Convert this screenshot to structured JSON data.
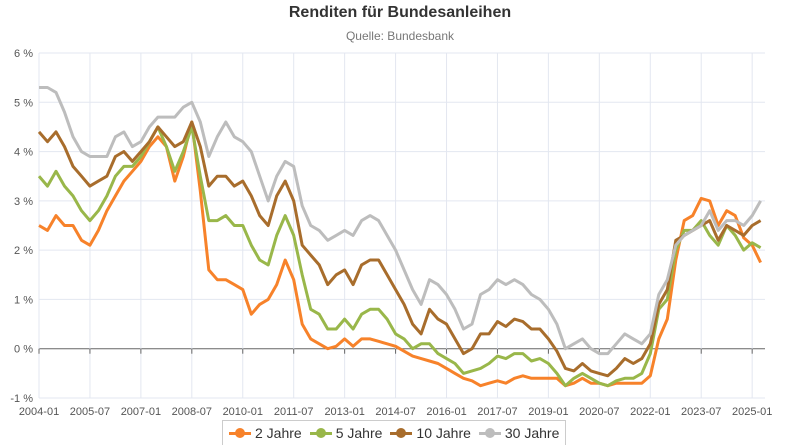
{
  "chart_data": {
    "type": "line",
    "title": "Renditen für Bundesanleihen",
    "subtitle": "Quelle: Bundesbank",
    "xlabel": "",
    "ylabel": "",
    "ylim": [
      -1,
      6
    ],
    "y_ticks": [
      "6 %",
      "5 %",
      "4 %",
      "3 %",
      "2 %",
      "1 %",
      "0 %",
      "-1 %"
    ],
    "y_tick_values": [
      6,
      5,
      4,
      3,
      2,
      1,
      0,
      -1
    ],
    "x_ticks": [
      "2004-01",
      "2005-07",
      "2007-01",
      "2008-07",
      "2010-01",
      "2011-07",
      "2013-01",
      "2014-07",
      "2016-01",
      "2017-07",
      "2019-01",
      "2020-07",
      "2022-01",
      "2023-07",
      "2025-01"
    ],
    "x_range": [
      "2004-01",
      "2025-05"
    ],
    "grid": true,
    "legend_position": "bottom",
    "x_start": "2004-01",
    "x_step": "quarterly",
    "series": [
      {
        "name": "2 Jahre",
        "color": "#f7822a",
        "values": [
          2.5,
          2.4,
          2.7,
          2.5,
          2.5,
          2.2,
          2.1,
          2.4,
          2.8,
          3.1,
          3.4,
          3.6,
          3.8,
          4.1,
          4.3,
          4.1,
          3.4,
          3.9,
          4.6,
          3.2,
          1.6,
          1.4,
          1.4,
          1.3,
          1.2,
          0.7,
          0.9,
          1.0,
          1.3,
          1.8,
          1.4,
          0.5,
          0.2,
          0.1,
          0.0,
          0.05,
          0.2,
          0.05,
          0.2,
          0.2,
          0.15,
          0.1,
          0.05,
          -0.05,
          -0.15,
          -0.2,
          -0.25,
          -0.3,
          -0.4,
          -0.5,
          -0.6,
          -0.65,
          -0.75,
          -0.7,
          -0.65,
          -0.7,
          -0.6,
          -0.55,
          -0.6,
          -0.6,
          -0.6,
          -0.6,
          -0.75,
          -0.7,
          -0.6,
          -0.7,
          -0.7,
          -0.75,
          -0.7,
          -0.7,
          -0.7,
          -0.7,
          -0.55,
          0.2,
          0.6,
          1.8,
          2.6,
          2.7,
          3.05,
          3.0,
          2.5,
          2.8,
          2.7,
          2.25,
          2.1,
          1.75
        ]
      },
      {
        "name": "5 Jahre",
        "color": "#99b74a",
        "values": [
          3.5,
          3.3,
          3.6,
          3.3,
          3.1,
          2.8,
          2.6,
          2.8,
          3.1,
          3.5,
          3.7,
          3.7,
          3.9,
          4.2,
          4.5,
          4.1,
          3.6,
          4.0,
          4.5,
          3.5,
          2.6,
          2.6,
          2.7,
          2.5,
          2.5,
          2.1,
          1.8,
          1.7,
          2.3,
          2.7,
          2.3,
          1.5,
          0.8,
          0.7,
          0.4,
          0.4,
          0.6,
          0.4,
          0.7,
          0.8,
          0.8,
          0.6,
          0.3,
          0.2,
          0.0,
          0.1,
          0.1,
          -0.1,
          -0.2,
          -0.3,
          -0.5,
          -0.45,
          -0.4,
          -0.3,
          -0.15,
          -0.2,
          -0.1,
          -0.1,
          -0.25,
          -0.2,
          -0.3,
          -0.5,
          -0.75,
          -0.6,
          -0.5,
          -0.6,
          -0.7,
          -0.75,
          -0.65,
          -0.6,
          -0.6,
          -0.5,
          -0.1,
          0.8,
          1.0,
          2.0,
          2.4,
          2.4,
          2.6,
          2.3,
          2.1,
          2.5,
          2.3,
          2.0,
          2.15,
          2.05
        ]
      },
      {
        "name": "10 Jahre",
        "color": "#a86d2c",
        "values": [
          4.4,
          4.2,
          4.4,
          4.1,
          3.7,
          3.5,
          3.3,
          3.4,
          3.5,
          3.9,
          4.0,
          3.8,
          4.0,
          4.2,
          4.5,
          4.3,
          4.1,
          4.2,
          4.6,
          4.1,
          3.3,
          3.5,
          3.5,
          3.3,
          3.4,
          3.1,
          2.7,
          2.5,
          3.1,
          3.4,
          3.0,
          2.1,
          1.9,
          1.7,
          1.3,
          1.5,
          1.6,
          1.3,
          1.7,
          1.8,
          1.8,
          1.5,
          1.2,
          0.9,
          0.5,
          0.3,
          0.8,
          0.6,
          0.5,
          0.2,
          -0.1,
          0.0,
          0.3,
          0.3,
          0.55,
          0.45,
          0.6,
          0.55,
          0.4,
          0.4,
          0.2,
          -0.05,
          -0.4,
          -0.45,
          -0.3,
          -0.45,
          -0.5,
          -0.55,
          -0.4,
          -0.2,
          -0.3,
          -0.2,
          0.1,
          0.9,
          1.2,
          2.2,
          2.3,
          2.4,
          2.5,
          2.6,
          2.2,
          2.5,
          2.4,
          2.3,
          2.5,
          2.6
        ]
      },
      {
        "name": "30 Jahre",
        "color": "#bdbdbd",
        "values": [
          5.3,
          5.3,
          5.2,
          4.8,
          4.3,
          4.0,
          3.9,
          3.9,
          3.9,
          4.3,
          4.4,
          4.1,
          4.2,
          4.5,
          4.7,
          4.7,
          4.7,
          4.9,
          5.0,
          4.6,
          3.9,
          4.3,
          4.6,
          4.3,
          4.2,
          4.0,
          3.5,
          3.0,
          3.5,
          3.8,
          3.7,
          2.9,
          2.5,
          2.4,
          2.2,
          2.3,
          2.4,
          2.3,
          2.6,
          2.7,
          2.6,
          2.3,
          2.0,
          1.6,
          1.2,
          0.9,
          1.4,
          1.3,
          1.1,
          0.8,
          0.4,
          0.5,
          1.1,
          1.2,
          1.4,
          1.3,
          1.4,
          1.3,
          1.1,
          1.0,
          0.8,
          0.5,
          0.0,
          0.1,
          0.2,
          0.0,
          -0.1,
          -0.1,
          0.1,
          0.3,
          0.2,
          0.1,
          0.3,
          1.1,
          1.4,
          2.1,
          2.3,
          2.4,
          2.5,
          2.8,
          2.4,
          2.6,
          2.6,
          2.5,
          2.7,
          3.0
        ]
      }
    ]
  }
}
